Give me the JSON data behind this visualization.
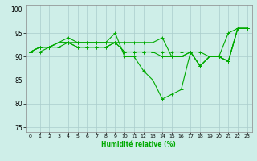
{
  "xlabel": "Humidité relative (%)",
  "xlim": [
    -0.5,
    23.5
  ],
  "ylim": [
    74,
    101
  ],
  "yticks": [
    75,
    80,
    85,
    90,
    95,
    100
  ],
  "xticks": [
    0,
    1,
    2,
    3,
    4,
    5,
    6,
    7,
    8,
    9,
    10,
    11,
    12,
    13,
    14,
    15,
    16,
    17,
    18,
    19,
    20,
    21,
    22,
    23
  ],
  "bg_color": "#ceeee8",
  "grid_color": "#aacccc",
  "line_color": "#00aa00",
  "line1": [
    91,
    92,
    92,
    93,
    94,
    93,
    93,
    93,
    93,
    95,
    90,
    90,
    87,
    85,
    81,
    82,
    83,
    91,
    88,
    90,
    90,
    89,
    96,
    96
  ],
  "line2": [
    91,
    92,
    92,
    93,
    93,
    93,
    93,
    93,
    93,
    93,
    93,
    93,
    93,
    93,
    94,
    90,
    90,
    91,
    91,
    90,
    90,
    95,
    96,
    96
  ],
  "line3": [
    91,
    92,
    92,
    93,
    93,
    92,
    92,
    92,
    92,
    93,
    91,
    91,
    91,
    91,
    90,
    90,
    90,
    91,
    88,
    90,
    90,
    89,
    96,
    96
  ],
  "line4": [
    91,
    91,
    92,
    92,
    93,
    92,
    92,
    92,
    92,
    93,
    91,
    91,
    91,
    91,
    91,
    91,
    91,
    91,
    88,
    90,
    90,
    89,
    96,
    96
  ]
}
